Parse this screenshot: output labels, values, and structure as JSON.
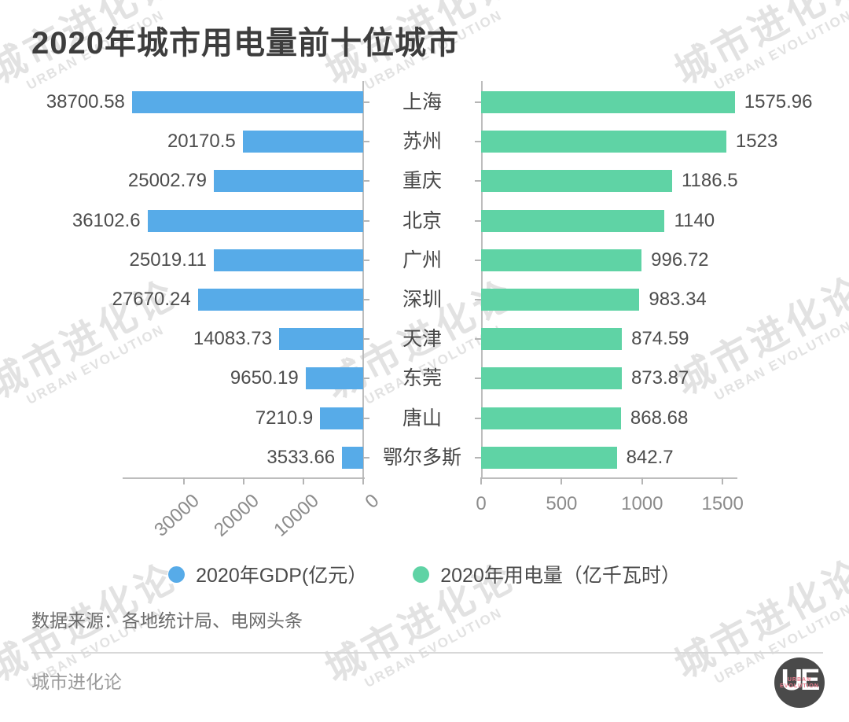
{
  "title": "2020年城市用电量前十位城市",
  "chart_data": {
    "type": "bar",
    "orientation": "horizontal",
    "layout": "tornado-double",
    "title": "2020年城市用电量前十位城市",
    "categories": [
      "上海",
      "苏州",
      "重庆",
      "北京",
      "广州",
      "深圳",
      "天津",
      "东莞",
      "唐山",
      "鄂尔多斯"
    ],
    "series": [
      {
        "name": "2020年GDP(亿元）",
        "color": "#57ABE8",
        "direction": "right_to_left",
        "values": [
          38700.58,
          20170.5,
          25002.79,
          36102.6,
          25019.11,
          27670.24,
          14083.73,
          9650.19,
          7210.9,
          3533.66
        ],
        "axis_ticks": [
          30000,
          20000,
          10000,
          0
        ],
        "xlim": [
          0,
          40000
        ]
      },
      {
        "name": "2020年用电量（亿千瓦时）",
        "color": "#5FD3A5",
        "direction": "left_to_right",
        "values": [
          1575.96,
          1523,
          1186.5,
          1140,
          996.72,
          983.34,
          874.59,
          873.87,
          868.68,
          842.7
        ],
        "axis_ticks": [
          0,
          500,
          1000,
          1500
        ],
        "xlim": [
          0,
          1600
        ]
      }
    ],
    "grid": false,
    "legend_position": "bottom",
    "value_labels": "outside-bar-end"
  },
  "legend": {
    "gdp": "2020年GDP(亿元）",
    "electricity": "2020年用电量（亿千瓦时）"
  },
  "source": "数据来源：各地统计局、电网头条",
  "footer": {
    "brand": "城市进化论",
    "logo": {
      "letters": "UE",
      "line1": "URBAN",
      "line2": "EVOLUTION"
    }
  },
  "watermark": {
    "line1": "城市进化论",
    "line2": "URBAN EVOLUTION"
  },
  "colors": {
    "gdp_bar": "#57ABE8",
    "electricity_bar": "#5FD3A5",
    "title_text": "#3D3D3D",
    "label_text": "#4D4D4D",
    "tick_text": "#8C8C8C",
    "axis_line": "#BDBDBD",
    "watermark": "#E2E2E2",
    "divider": "#D8D8D8",
    "logo_bg": "#4A4A4A",
    "logo_accent": "#E8798A"
  }
}
